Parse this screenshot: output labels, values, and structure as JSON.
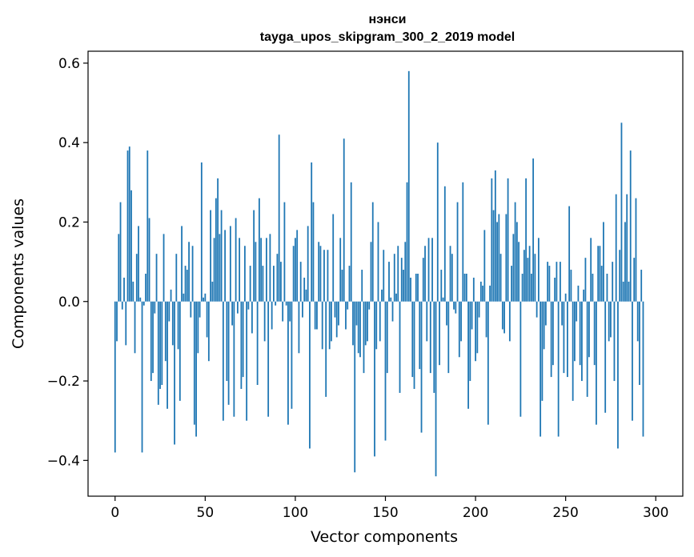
{
  "chart_data": {
    "type": "bar",
    "title": "нэнси",
    "subtitle": "tayga_upos_skipgram_300_2_2019 model",
    "xlabel": "Vector components",
    "ylabel": "Components values",
    "xlim": [
      -15,
      315
    ],
    "ylim": [
      -0.49,
      0.63
    ],
    "xticks": [
      0,
      50,
      100,
      150,
      200,
      250,
      300
    ],
    "yticks": [
      -0.4,
      -0.2,
      0.0,
      0.2,
      0.4,
      0.6
    ],
    "ytick_labels": [
      "−0.4",
      "−0.2",
      "0.0",
      "0.2",
      "0.4",
      "0.6"
    ],
    "grid": false,
    "bar_color": "#1f77b4",
    "x_start": 0,
    "values": [
      -0.38,
      -0.1,
      0.17,
      0.25,
      -0.02,
      0.06,
      -0.11,
      0.38,
      0.39,
      0.28,
      0.05,
      -0.13,
      0.12,
      0.19,
      0.01,
      -0.38,
      -0.01,
      0.07,
      0.38,
      0.21,
      -0.2,
      -0.18,
      -0.03,
      0.12,
      -0.26,
      -0.22,
      -0.21,
      0.17,
      -0.15,
      -0.27,
      -0.05,
      0.03,
      -0.11,
      -0.36,
      0.12,
      -0.12,
      -0.25,
      0.19,
      0.02,
      0.09,
      0.08,
      0.15,
      -0.04,
      0.14,
      -0.31,
      -0.34,
      -0.13,
      -0.04,
      0.35,
      0.01,
      0.02,
      -0.09,
      -0.15,
      0.23,
      0.05,
      0.16,
      0.26,
      0.31,
      0.17,
      0.23,
      -0.3,
      0.18,
      -0.2,
      -0.26,
      0.19,
      -0.06,
      -0.29,
      0.21,
      -0.03,
      0.16,
      -0.22,
      -0.19,
      0.14,
      -0.3,
      -0.02,
      0.09,
      -0.08,
      0.23,
      0.15,
      -0.21,
      0.26,
      0.16,
      0.09,
      -0.1,
      0.16,
      -0.29,
      0.17,
      -0.07,
      0.09,
      -0.01,
      0.12,
      0.42,
      0.1,
      -0.05,
      0.25,
      -0.01,
      -0.31,
      -0.05,
      -0.27,
      0.14,
      0.16,
      0.18,
      -0.13,
      0.1,
      -0.04,
      0.06,
      0.03,
      0.19,
      -0.37,
      0.35,
      0.25,
      -0.07,
      -0.07,
      0.15,
      0.14,
      -0.12,
      0.13,
      -0.24,
      0.13,
      -0.12,
      -0.1,
      0.22,
      -0.04,
      -0.09,
      -0.06,
      0.16,
      0.08,
      0.41,
      -0.07,
      -0.02,
      0.09,
      0.3,
      -0.11,
      -0.43,
      -0.06,
      -0.13,
      -0.14,
      0.08,
      -0.18,
      -0.11,
      -0.1,
      -0.02,
      0.15,
      0.25,
      -0.39,
      -0.12,
      0.2,
      -0.1,
      0.03,
      0.13,
      -0.35,
      -0.18,
      0.1,
      0.01,
      -0.05,
      0.12,
      0.02,
      0.14,
      -0.23,
      0.11,
      0.08,
      0.15,
      0.3,
      0.58,
      0.06,
      -0.19,
      -0.22,
      0.07,
      0.07,
      -0.17,
      -0.33,
      0.11,
      0.14,
      -0.1,
      0.16,
      -0.18,
      0.16,
      -0.23,
      -0.44,
      0.4,
      -0.16,
      0.08,
      0.01,
      0.29,
      -0.06,
      -0.18,
      0.14,
      0.12,
      -0.02,
      -0.03,
      0.25,
      -0.14,
      -0.1,
      0.3,
      0.07,
      0.07,
      -0.27,
      -0.2,
      -0.07,
      0.06,
      -0.15,
      -0.13,
      -0.04,
      0.05,
      0.04,
      0.18,
      -0.09,
      -0.31,
      0.04,
      0.31,
      0.23,
      0.33,
      0.2,
      0.22,
      0.12,
      -0.07,
      -0.08,
      0.22,
      0.31,
      -0.1,
      0.09,
      0.17,
      0.25,
      0.2,
      0.15,
      -0.29,
      0.07,
      0.13,
      0.31,
      0.11,
      0.14,
      0.07,
      0.36,
      0.12,
      -0.04,
      0.16,
      -0.34,
      -0.25,
      -0.12,
      -0.06,
      0.1,
      0.09,
      -0.19,
      -0.16,
      0.06,
      0.1,
      -0.34,
      0.1,
      -0.06,
      -0.18,
      0.02,
      -0.19,
      0.24,
      0.08,
      -0.25,
      -0.15,
      -0.05,
      0.04,
      -0.16,
      -0.2,
      0.03,
      0.11,
      -0.24,
      -0.14,
      0.16,
      0.07,
      -0.16,
      -0.31,
      0.14,
      0.14,
      0.09,
      0.2,
      -0.28,
      0.07,
      -0.1,
      -0.09,
      0.1,
      -0.2,
      0.27,
      -0.37,
      0.13,
      0.45,
      0.05,
      0.2,
      0.27,
      0.05,
      0.38,
      -0.3,
      0.11,
      0.26,
      -0.1,
      -0.21,
      0.08,
      -0.34
    ]
  }
}
